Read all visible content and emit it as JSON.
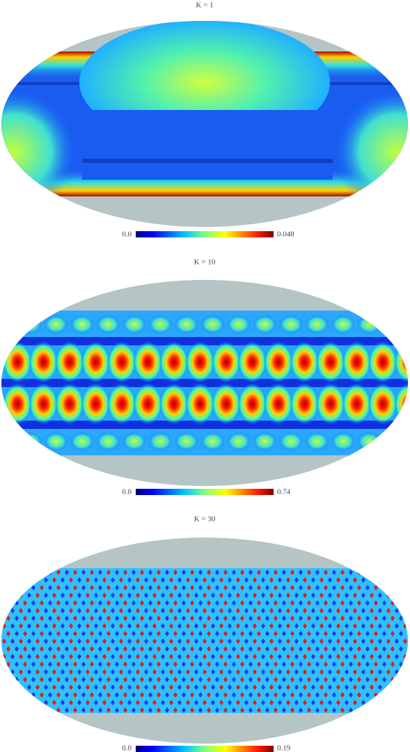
{
  "panels": [
    {
      "title": "K = 1",
      "colorbar": {
        "min_label": "0.0",
        "max_label": "0.048"
      }
    },
    {
      "title": "K = 10",
      "colorbar": {
        "min_label": "0.0",
        "max_label": "0.74"
      }
    },
    {
      "title": "K = 30",
      "colorbar": {
        "min_label": "0.0",
        "max_label": "0.19"
      }
    }
  ]
}
